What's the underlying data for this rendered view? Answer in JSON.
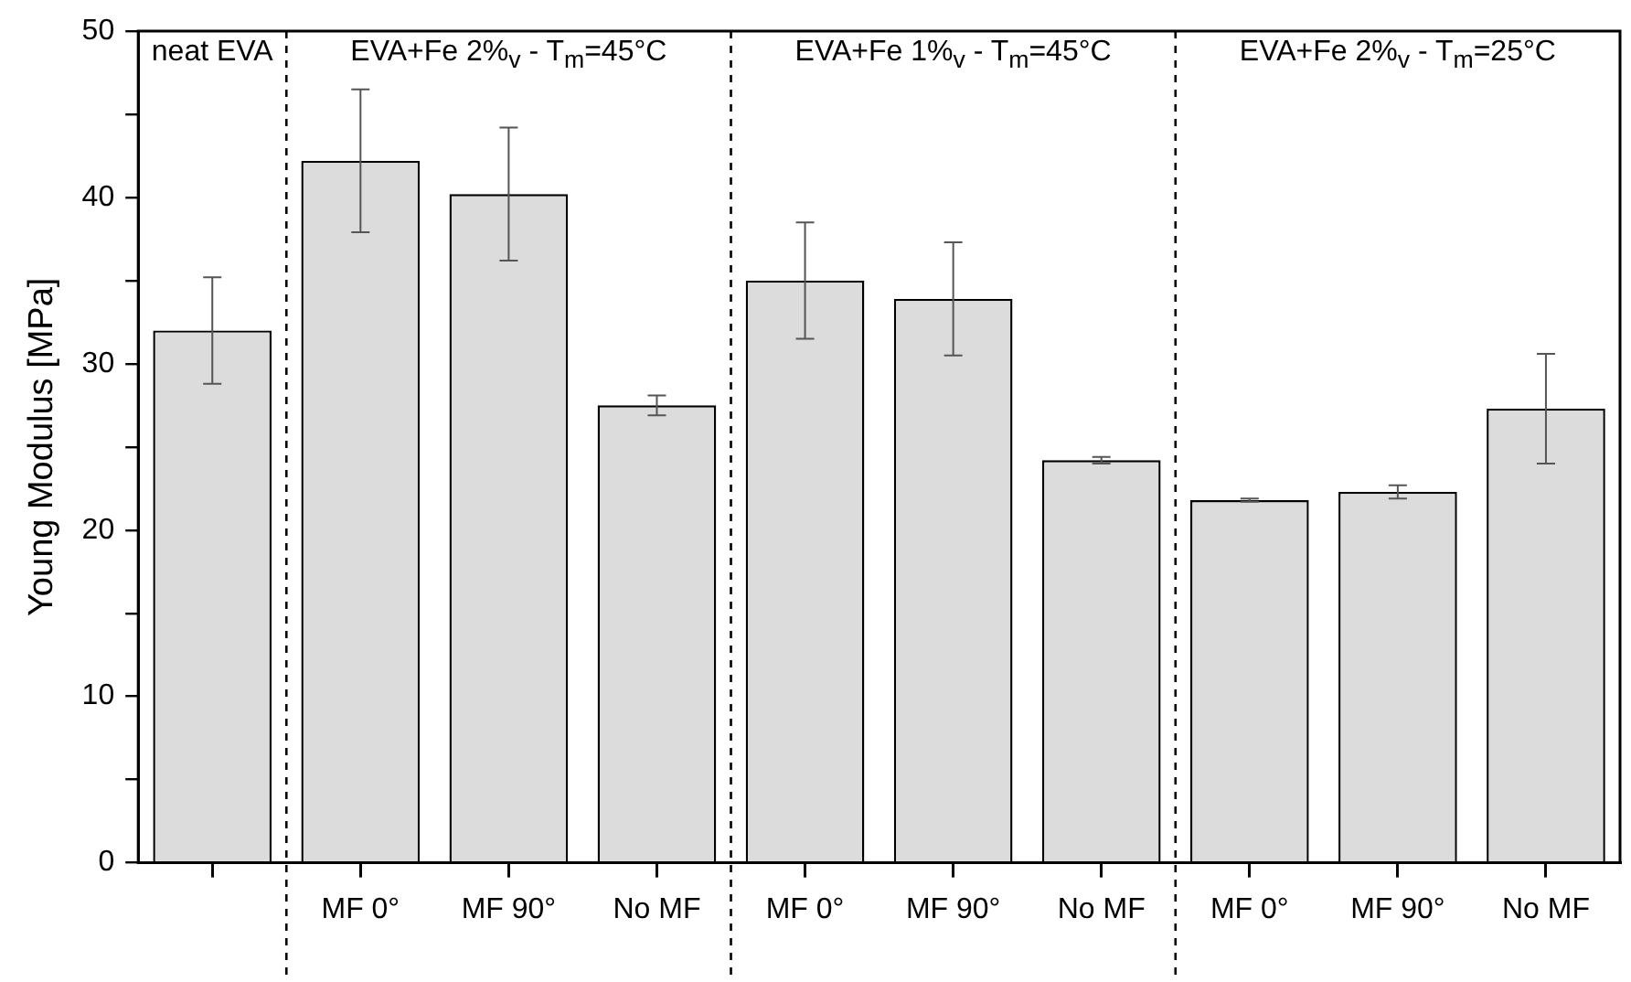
{
  "chart_data": {
    "type": "bar",
    "ylabel": "Young Modulus [MPa]",
    "categories": [
      null,
      "MF 0°",
      "MF 90°",
      "No MF",
      "MF 0°",
      "MF 90°",
      "No MF",
      "MF 0°",
      "MF 90°",
      "No MF"
    ],
    "values": [
      32.0,
      42.2,
      40.2,
      27.5,
      35.0,
      33.9,
      24.2,
      21.8,
      22.3,
      27.3
    ],
    "errors": [
      3.2,
      4.3,
      4.0,
      0.6,
      3.5,
      3.4,
      0.2,
      0.1,
      0.4,
      3.3
    ],
    "color": "#dcdcdc",
    "ylim": [
      0,
      50
    ],
    "yticks": [
      0,
      {
        "value": 5,
        "label": null
      },
      10,
      {
        "value": 15,
        "label": null
      },
      20,
      {
        "value": 25,
        "label": null
      },
      30,
      {
        "value": 35,
        "label": null
      },
      40,
      {
        "value": 45,
        "label": null
      },
      50
    ],
    "annotations": [
      "neat EVA",
      "EVA+Fe 2%$_{v}$ - T$_{m}$=45°C",
      "EVA+Fe 1%$_{v}$ - T$_{m}$=45°C",
      "EVA+Fe 2%$_{v}$ - T$_{m}$=25°C"
    ],
    "grid": false,
    "legend": false
  }
}
